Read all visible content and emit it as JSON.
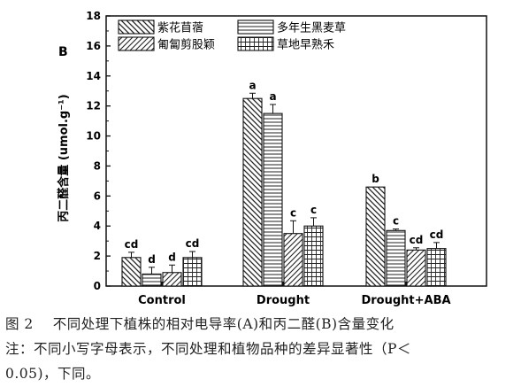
{
  "panel_letter": "B",
  "caption": {
    "number": "图 2",
    "line1": "不同处理下植株的相对电导率(A)和丙二醛(B)含量变化",
    "line2": "注：不同小写字母表示，不同处理和植物品种的差异显著性（P＜",
    "line3": "0.05)，下同。"
  },
  "colors": {
    "axis": "#111111",
    "fill": "#ffffff",
    "pattern": "#222222"
  },
  "chart_data": {
    "type": "bar",
    "title": "",
    "xlabel": "",
    "ylabel": "丙二醛含量 (umol.g⁻¹)",
    "ylim": [
      0,
      18
    ],
    "yticks": [
      0,
      2,
      4,
      6,
      8,
      10,
      12,
      14,
      16,
      18
    ],
    "categories": [
      "Control",
      "Drought",
      "Drought+ABA"
    ],
    "legend_placement": "top-left, inside plot, two columns",
    "series": [
      {
        "name": "紫花苜蓿",
        "pattern": "diag-back",
        "values": [
          1.9,
          12.5,
          6.6
        ],
        "errors": [
          0.35,
          0.35,
          0
        ],
        "letters": [
          "cd",
          "a",
          "b"
        ]
      },
      {
        "name": "多年生黑麦草",
        "pattern": "horiz",
        "values": [
          0.8,
          11.5,
          3.7
        ],
        "errors": [
          0.45,
          0.6,
          0.1
        ],
        "letters": [
          "d",
          "a",
          "c"
        ]
      },
      {
        "name": "匍匐剪股颖",
        "pattern": "diag-fwd",
        "values": [
          0.9,
          3.5,
          2.4
        ],
        "errors": [
          0.5,
          0.85,
          0.15
        ],
        "letters": [
          "d",
          "c",
          "cd"
        ]
      },
      {
        "name": "草地早熟禾",
        "pattern": "grid",
        "values": [
          1.9,
          4.0,
          2.5
        ],
        "errors": [
          0.4,
          0.55,
          0.4
        ],
        "letters": [
          "cd",
          "c",
          "cd"
        ]
      }
    ]
  }
}
